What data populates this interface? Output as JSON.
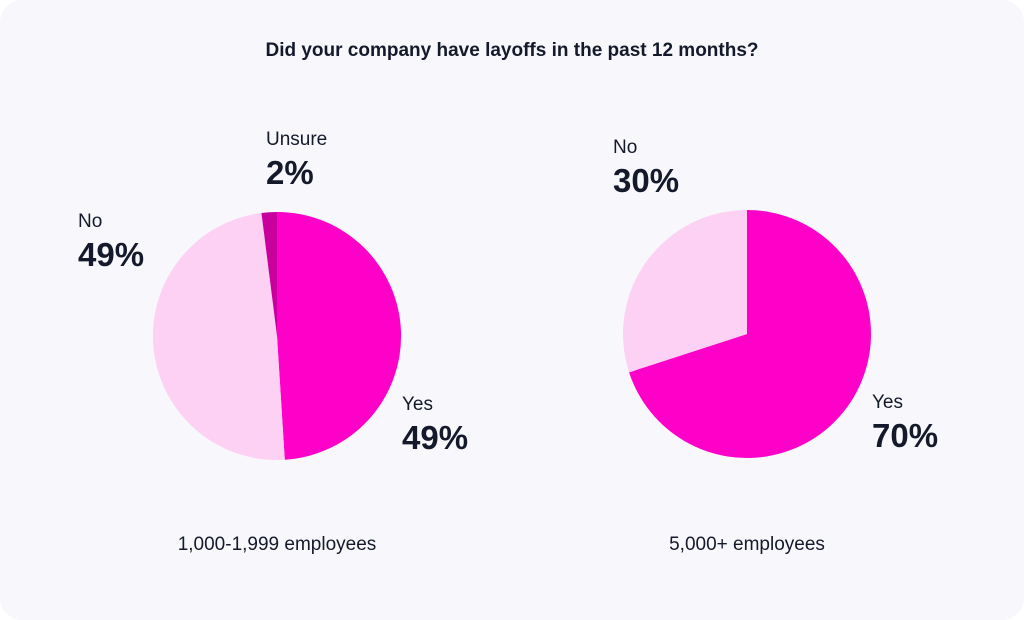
{
  "title": "Did your company have layoffs in the past 12 months?",
  "colors": {
    "yes": "#ff00c8",
    "no": "#fdd1f4",
    "unsure": "#c7009e",
    "text": "#14192b"
  },
  "chart_data": [
    {
      "type": "pie",
      "caption": "1,000-1,999 employees",
      "slices": [
        {
          "label": "Yes",
          "value": 49,
          "value_label": "49%",
          "color": "#ff00c8"
        },
        {
          "label": "No",
          "value": 49,
          "value_label": "49%",
          "color": "#fdd1f4"
        },
        {
          "label": "Unsure",
          "value": 2,
          "value_label": "2%",
          "color": "#c7009e"
        }
      ]
    },
    {
      "type": "pie",
      "caption": "5,000+ employees",
      "slices": [
        {
          "label": "Yes",
          "value": 70,
          "value_label": "70%",
          "color": "#ff00c8"
        },
        {
          "label": "No",
          "value": 30,
          "value_label": "30%",
          "color": "#fdd1f4"
        }
      ]
    }
  ]
}
